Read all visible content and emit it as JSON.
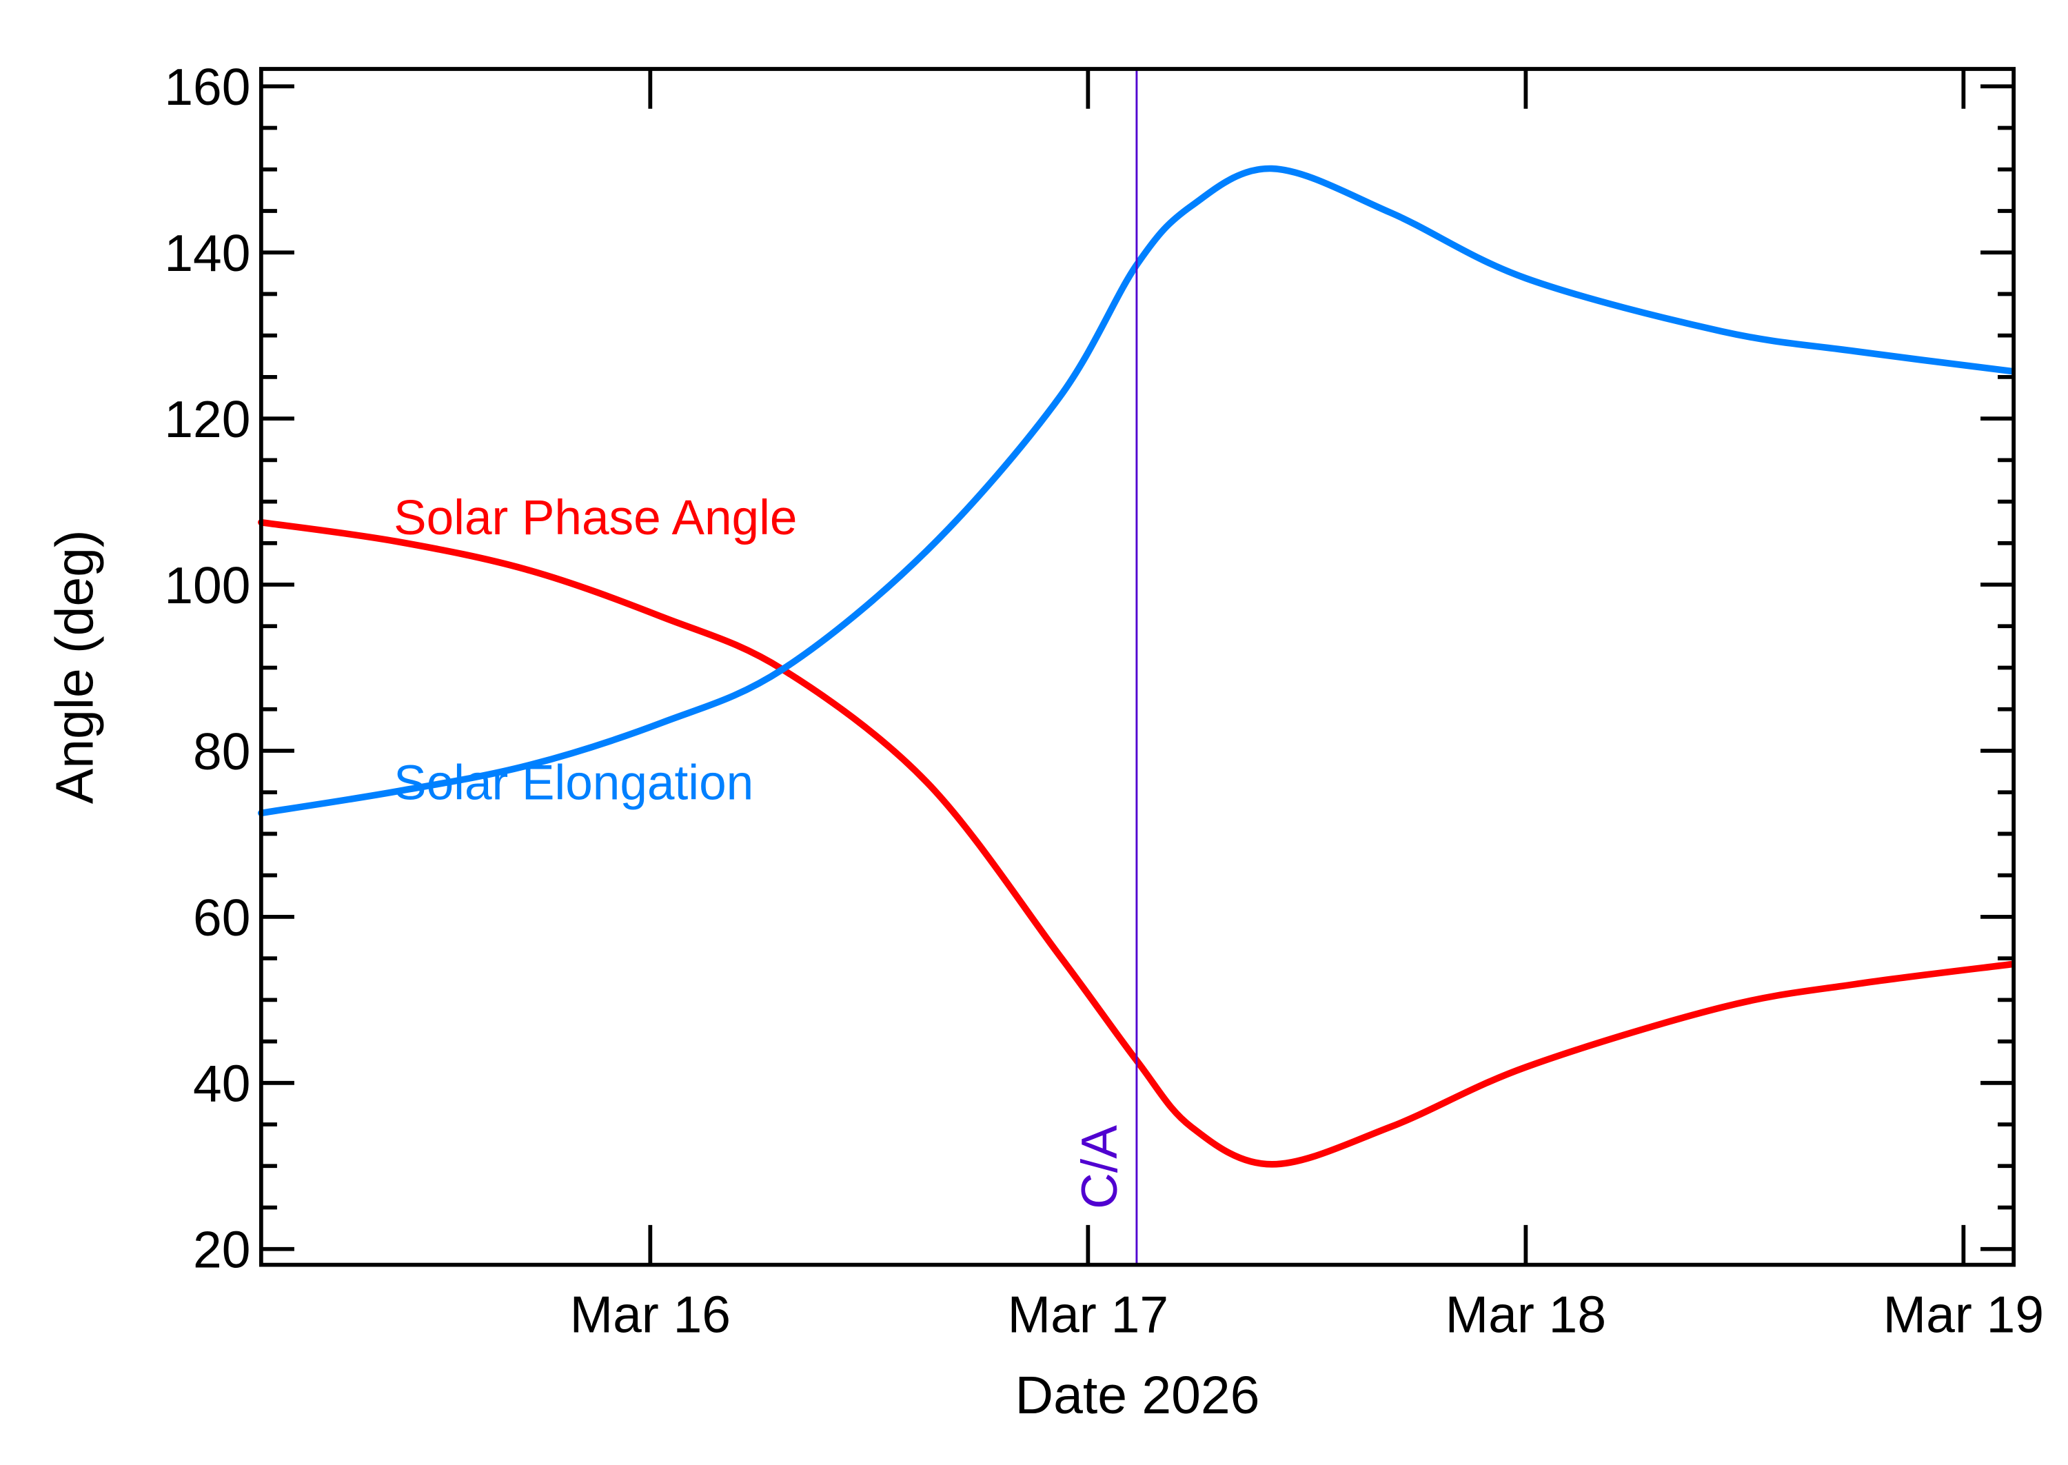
{
  "chart_data": {
    "type": "line",
    "title": "",
    "xlabel": "Date 2026",
    "ylabel": "Angle (deg)",
    "xlim": [
      "2026-03-15T02:40",
      "2026-03-19T02:45"
    ],
    "ylim": [
      18.1,
      162.1
    ],
    "x_ticks": [
      {
        "date": "2026-03-16T00:00",
        "label": "Mar 16"
      },
      {
        "date": "2026-03-17T00:00",
        "label": "Mar 17"
      },
      {
        "date": "2026-03-18T00:00",
        "label": "Mar 18"
      },
      {
        "date": "2026-03-19T00:00",
        "label": "Mar 19"
      }
    ],
    "y_ticks": [
      20,
      40,
      60,
      80,
      100,
      120,
      140,
      160
    ],
    "y_minor_step": 5,
    "grid": false,
    "series": [
      {
        "name": "Solar Phase Angle",
        "color": "#ff0000",
        "x": [
          "2026-03-15T02:40",
          "2026-03-15T10:05",
          "2026-03-15T17:25",
          "2026-03-16T00:40",
          "2026-03-16T07:15",
          "2026-03-16T15:10",
          "2026-03-16T22:25",
          "2026-03-17T02:40",
          "2026-03-17T05:40",
          "2026-03-17T10:05",
          "2026-03-17T16:35",
          "2026-03-18T00:00",
          "2026-03-18T10:45",
          "2026-03-18T18:05",
          "2026-03-19T02:40"
        ],
        "y": [
          107.5,
          105.2,
          101.7,
          96.1,
          89.8,
          76.2,
          55.4,
          42.7,
          34.7,
          30.2,
          34.7,
          41.9,
          49.1,
          51.9,
          54.3
        ]
      },
      {
        "name": "Solar Elongation",
        "color": "#0080ff",
        "x": [
          "2026-03-15T02:40",
          "2026-03-15T10:05",
          "2026-03-15T17:25",
          "2026-03-16T00:40",
          "2026-03-16T07:15",
          "2026-03-16T15:10",
          "2026-03-16T22:25",
          "2026-03-17T02:40",
          "2026-03-17T05:40",
          "2026-03-17T10:05",
          "2026-03-17T16:35",
          "2026-03-18T00:00",
          "2026-03-18T10:45",
          "2026-03-18T18:05",
          "2026-03-19T02:40"
        ],
        "y": [
          72.5,
          75.1,
          78.3,
          83.4,
          89.8,
          104.1,
          122.5,
          138.5,
          145.6,
          150.1,
          144.8,
          136.9,
          130.5,
          128.1,
          125.7
        ]
      }
    ],
    "annotations": [
      {
        "type": "vline",
        "date": "2026-03-17T02:40",
        "label": "C/A",
        "color": "#5000d0"
      }
    ],
    "legend": "inline-labels"
  }
}
